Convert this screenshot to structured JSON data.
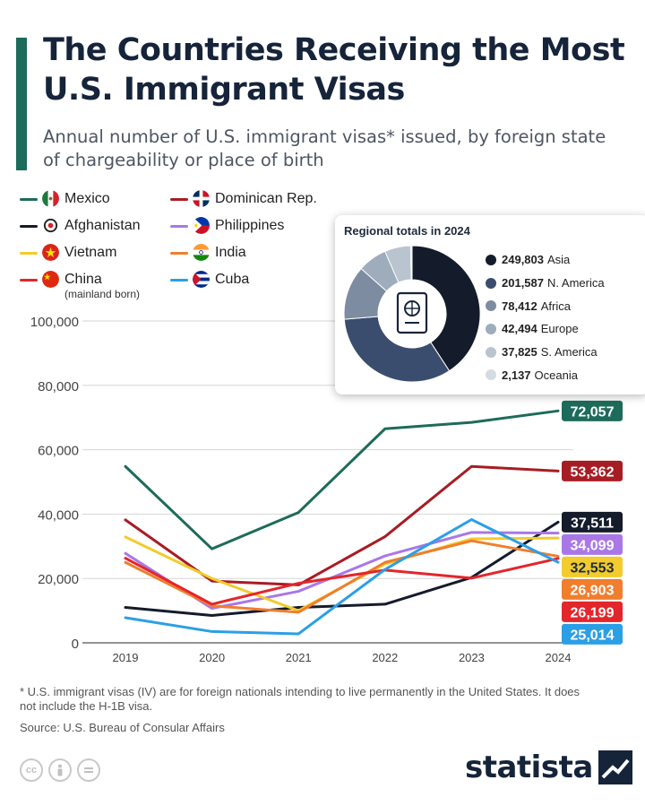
{
  "header": {
    "title": "The Countries Receiving the Most U.S. Immigrant Visas",
    "subtitle": "Annual number of U.S. immigrant visas* issued, by foreign state of chargeability or place of birth"
  },
  "legend": [
    {
      "label": "Mexico",
      "sublabel": "",
      "color": "#1d6b5a",
      "flag": "mexico-flag-icon"
    },
    {
      "label": "Afghanistan",
      "sublabel": "",
      "color": "#141b2b",
      "flag": "afghanistan-flag-icon"
    },
    {
      "label": "Vietnam",
      "sublabel": "",
      "color": "#f2cb2c",
      "flag": "vietnam-flag-icon"
    },
    {
      "label": "China",
      "sublabel": "(mainland born)",
      "color": "#e3262c",
      "flag": "china-flag-icon"
    },
    {
      "label": "Dominican Rep.",
      "sublabel": "",
      "color": "#a81c24",
      "flag": "dominican-flag-icon"
    },
    {
      "label": "Philippines",
      "sublabel": "",
      "color": "#a978e6",
      "flag": "philippines-flag-icon"
    },
    {
      "label": "India",
      "sublabel": "",
      "color": "#f07e2e",
      "flag": "india-flag-icon"
    },
    {
      "label": "Cuba",
      "sublabel": "",
      "color": "#2b9fe6",
      "flag": "cuba-flag-icon"
    }
  ],
  "inset": {
    "title": "Regional totals in 2024",
    "icon": "passport-icon",
    "regions": [
      {
        "value": "249,803",
        "name": "Asia",
        "amount": 249803,
        "color": "#141b2b"
      },
      {
        "value": "201,587",
        "name": "N. America",
        "amount": 201587,
        "color": "#3b4d6e"
      },
      {
        "value": "78,412",
        "name": "Africa",
        "amount": 78412,
        "color": "#7d8ca0"
      },
      {
        "value": "42,494",
        "name": "Europe",
        "amount": 42494,
        "color": "#9eacbb"
      },
      {
        "value": "37,825",
        "name": "S. America",
        "amount": 37825,
        "color": "#b9c4cf"
      },
      {
        "value": "2,137",
        "name": "Oceania",
        "amount": 2137,
        "color": "#d4dce3"
      }
    ]
  },
  "chart_data": {
    "type": "line",
    "x": [
      "2019",
      "2020",
      "2021",
      "2022",
      "2023",
      "2024"
    ],
    "ylim": [
      0,
      100000
    ],
    "yticks": [
      "0",
      "20,000",
      "40,000",
      "60,000",
      "80,000",
      "100,000"
    ],
    "grid": true,
    "series": [
      {
        "name": "Mexico",
        "color": "#1d6b5a",
        "values": [
          54800,
          29200,
          40500,
          66500,
          68500,
          72057
        ],
        "end_label": "72,057"
      },
      {
        "name": "Dominican Rep.",
        "color": "#a81c24",
        "values": [
          38200,
          19200,
          18000,
          33000,
          54800,
          53362
        ],
        "end_label": "53,362"
      },
      {
        "name": "Afghanistan",
        "color": "#141b2b",
        "values": [
          11000,
          8500,
          11000,
          12000,
          20300,
          37511
        ],
        "end_label": "37,511"
      },
      {
        "name": "Philippines",
        "color": "#a978e6",
        "values": [
          27800,
          10700,
          16000,
          27000,
          34300,
          34099
        ],
        "end_label": "34,099"
      },
      {
        "name": "Vietnam",
        "color": "#f2cb2c",
        "values": [
          32900,
          20000,
          10000,
          24500,
          32300,
          32553
        ],
        "end_label": "32,553"
      },
      {
        "name": "India",
        "color": "#f07e2e",
        "values": [
          25000,
          11500,
          9500,
          25000,
          31700,
          26903
        ],
        "end_label": "26,903"
      },
      {
        "name": "China",
        "color": "#e3262c",
        "values": [
          26300,
          12000,
          18500,
          22600,
          20100,
          26199
        ],
        "end_label": "26,199"
      },
      {
        "name": "Cuba",
        "color": "#2b9fe6",
        "values": [
          7800,
          3500,
          2800,
          22800,
          38300,
          25014
        ],
        "end_label": "25,014"
      }
    ]
  },
  "footnote": "* U.S. immigrant visas (IV) are for foreign nationals intending to live permanently in the United States. It does not include the H-1B visa.",
  "source": "Source: U.S. Bureau of Consular Affairs",
  "brand": "statista",
  "license_icons": [
    "cc-icon",
    "attribution-icon",
    "no-derivatives-icon"
  ]
}
